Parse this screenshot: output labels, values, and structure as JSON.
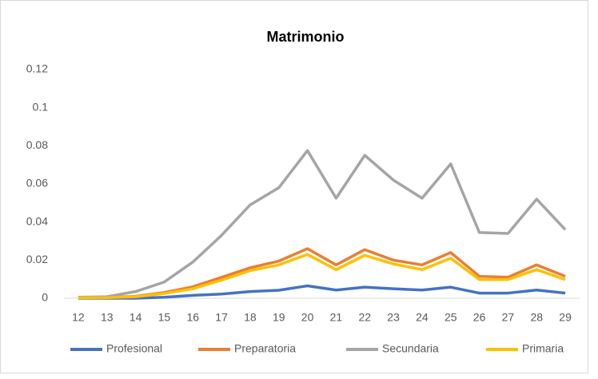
{
  "chart_data": {
    "type": "line",
    "title": "Matrimonio",
    "categories": [
      "12",
      "13",
      "14",
      "15",
      "16",
      "17",
      "18",
      "19",
      "20",
      "21",
      "22",
      "23",
      "24",
      "25",
      "26",
      "27",
      "28",
      "29"
    ],
    "series": [
      {
        "name": "Profesional",
        "color": "#4472c4",
        "values": [
          0,
          0,
          0,
          0.0005,
          0.0015,
          0.0022,
          0.0035,
          0.0042,
          0.0065,
          0.0043,
          0.0058,
          0.005,
          0.0043,
          0.0058,
          0.0027,
          0.0027,
          0.0043,
          0.0027
        ]
      },
      {
        "name": "Preparatoria",
        "color": "#ed7d31",
        "values": [
          0.0003,
          0.0004,
          0.001,
          0.003,
          0.006,
          0.011,
          0.016,
          0.0195,
          0.026,
          0.0175,
          0.0255,
          0.02,
          0.0175,
          0.024,
          0.0115,
          0.011,
          0.0175,
          0.0115
        ]
      },
      {
        "name": "Secundaria",
        "color": "#a5a5a5",
        "values": [
          0.0005,
          0.0008,
          0.0035,
          0.0085,
          0.019,
          0.033,
          0.049,
          0.058,
          0.0775,
          0.0525,
          0.075,
          0.062,
          0.0525,
          0.0705,
          0.0345,
          0.034,
          0.052,
          0.036
        ]
      },
      {
        "name": "Primaria",
        "color": "#ffc000",
        "values": [
          0.0002,
          0.0003,
          0.0008,
          0.0025,
          0.005,
          0.0095,
          0.0145,
          0.0175,
          0.023,
          0.015,
          0.0225,
          0.018,
          0.015,
          0.021,
          0.0098,
          0.0098,
          0.015,
          0.0098
        ]
      }
    ],
    "ylim": [
      0,
      0.12
    ],
    "yticks": [
      0,
      0.02,
      0.04,
      0.06,
      0.08,
      0.1,
      0.12
    ],
    "grid": false,
    "legend": "bottom"
  }
}
